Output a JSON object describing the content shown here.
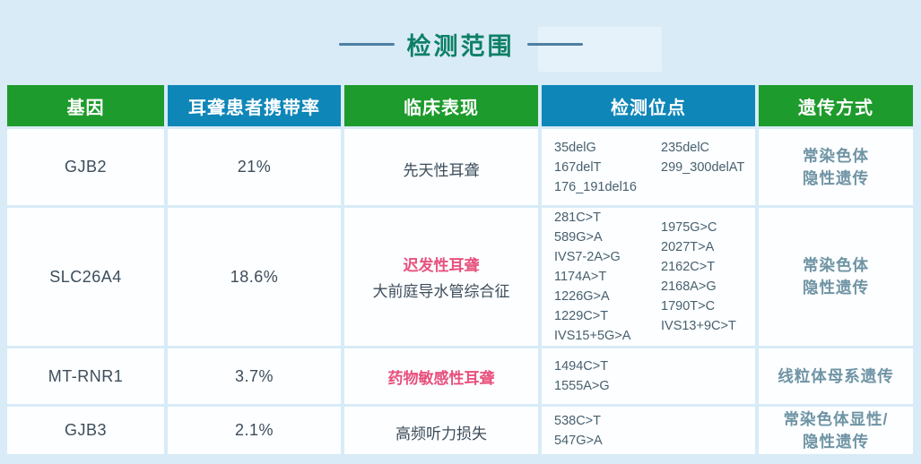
{
  "title": "检测范围",
  "colors": {
    "background": "#d8ebf7",
    "header_green": "#1d9b2c",
    "header_blue": "#0e86b8",
    "title_green": "#0e8066",
    "title_line_blue": "#4d7fa2",
    "highlight_pink": "#e8517e",
    "body_text": "#3d4d5b",
    "inheritance_text": "#6f94a4",
    "cell_background": "#fcfeff"
  },
  "table": {
    "headers": {
      "gene": "基因",
      "carrier_rate": "耳聋患者携带率",
      "clinical": "临床表现",
      "sites": "检测位点",
      "inheritance": "遗传方式"
    },
    "rows": [
      {
        "gene": "GJB2",
        "carrier_rate": "21%",
        "clinical_highlight": "",
        "clinical_normal": "先天性耳聋",
        "sites_col1": [
          "35delG",
          "167delT",
          "176_191del16"
        ],
        "sites_col2": [
          "235delC",
          "299_300delAT"
        ],
        "inheritance": [
          "常染色体",
          "隐性遗传"
        ]
      },
      {
        "gene": "SLC26A4",
        "carrier_rate": "18.6%",
        "clinical_highlight": "迟发性耳聋",
        "clinical_normal": "大前庭导水管综合征",
        "sites_col1": [
          "281C>T",
          "589G>A",
          "IVS7-2A>G",
          "1174A>T",
          "1226G>A",
          "1229C>T",
          "IVS15+5G>A"
        ],
        "sites_col2": [
          "1975G>C",
          "2027T>A",
          "2162C>T",
          "2168A>G",
          "1790T>C",
          "IVS13+9C>T"
        ],
        "inheritance": [
          "常染色体",
          "隐性遗传"
        ]
      },
      {
        "gene": "MT-RNR1",
        "carrier_rate": "3.7%",
        "clinical_highlight": "药物敏感性耳聋",
        "clinical_normal": "",
        "sites_col1": [
          "1494C>T",
          "1555A>G"
        ],
        "sites_col2": [],
        "inheritance": [
          "线粒体母系遗传"
        ]
      },
      {
        "gene": "GJB3",
        "carrier_rate": "2.1%",
        "clinical_highlight": "",
        "clinical_normal": "高频听力损失",
        "sites_col1": [
          "538C>T",
          "547G>A"
        ],
        "sites_col2": [],
        "inheritance": [
          "常染色体显性/",
          "隐性遗传"
        ]
      }
    ]
  }
}
